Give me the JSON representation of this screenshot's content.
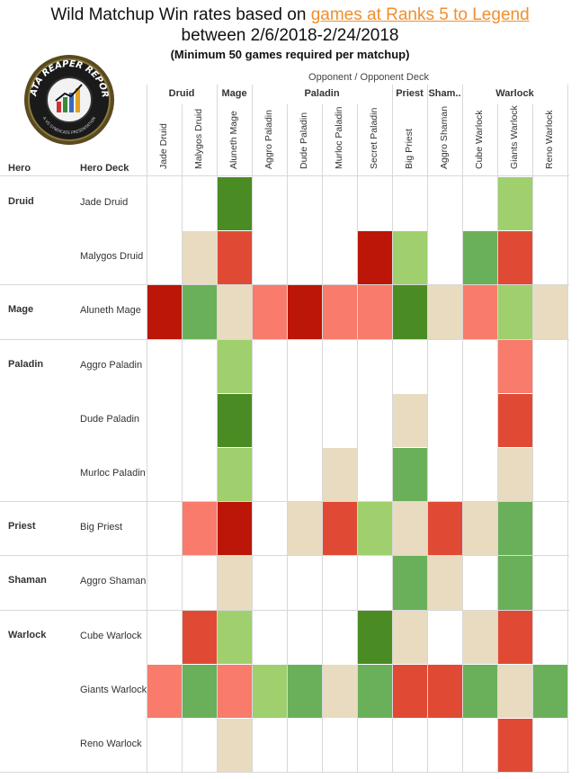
{
  "header": {
    "title_pre": "Wild Matchup Win rates based on ",
    "title_link": "games at Ranks 5 to Legend",
    "subtitle": "between 2/6/2018-2/24/2018",
    "note": "(Minimum 50 games required per matchup)"
  },
  "logo": {
    "text_top": "DATA REAPER REPORT",
    "text_bottom": "A VS SYNDICATE PRESENTATION"
  },
  "axis": {
    "opponent_caption": "Opponent  /  Opponent Deck",
    "hero_label": "Hero",
    "hero_deck_label": "Hero Deck"
  },
  "colors": {
    "strong_fav": "#4a8c23",
    "fav": "#6aaf5a",
    "slight_fav": "#9fd06d",
    "even": "#e8dbc0",
    "slight_unfav": "#f87b6b",
    "unfav": "#e04a35",
    "strong_unfav": "#bb1608"
  },
  "chart_data": {
    "type": "heatmap",
    "legend_scale": [
      "strong_unfav",
      "unfav",
      "slight_unfav",
      "even",
      "slight_fav",
      "fav",
      "strong_fav"
    ],
    "opponent_groups": [
      {
        "name": "Druid",
        "span": 2
      },
      {
        "name": "Mage",
        "span": 1
      },
      {
        "name": "Paladin",
        "span": 4
      },
      {
        "name": "Priest",
        "span": 1
      },
      {
        "name": "Sham..",
        "span": 1
      },
      {
        "name": "Warlock",
        "span": 3
      }
    ],
    "opponent_decks": [
      "Jade Druid",
      "Malygos Druid",
      "Aluneth Mage",
      "Aggro Paladin",
      "Dude Paladin",
      "Murloc Paladin",
      "Secret Paladin",
      "Big Priest",
      "Aggro Shaman",
      "Cube Warlock",
      "Giants Warlock",
      "Reno Warlock"
    ],
    "hero_groups": [
      {
        "name": "Druid",
        "decks": [
          "Jade Druid",
          "Malygos Druid"
        ]
      },
      {
        "name": "Mage",
        "decks": [
          "Aluneth Mage"
        ]
      },
      {
        "name": "Paladin",
        "decks": [
          "Aggro Paladin",
          "Dude Paladin",
          "Murloc Paladin"
        ]
      },
      {
        "name": "Priest",
        "decks": [
          "Big Priest"
        ]
      },
      {
        "name": "Shaman",
        "decks": [
          "Aggro Shaman"
        ]
      },
      {
        "name": "Warlock",
        "decks": [
          "Cube Warlock",
          "Giants Warlock",
          "Reno Warlock"
        ]
      }
    ],
    "matrix": [
      [
        null,
        null,
        "strong_fav",
        null,
        null,
        null,
        null,
        null,
        null,
        null,
        "slight_fav",
        null
      ],
      [
        null,
        "even",
        "unfav",
        null,
        null,
        null,
        "strong_unfav",
        "slight_fav",
        null,
        "fav",
        "unfav",
        null
      ],
      [
        "strong_unfav",
        "fav",
        "even",
        "slight_unfav",
        "strong_unfav",
        "slight_unfav",
        "slight_unfav",
        "strong_fav",
        "even",
        "slight_unfav",
        "slight_fav",
        "even"
      ],
      [
        null,
        null,
        "slight_fav",
        null,
        null,
        null,
        null,
        null,
        null,
        null,
        "slight_unfav",
        null
      ],
      [
        null,
        null,
        "strong_fav",
        null,
        null,
        null,
        null,
        "even",
        null,
        null,
        "unfav",
        null
      ],
      [
        null,
        null,
        "slight_fav",
        null,
        null,
        "even",
        null,
        "fav",
        null,
        null,
        "even",
        null
      ],
      [
        null,
        "slight_unfav",
        "strong_unfav",
        null,
        "even",
        "unfav",
        "slight_fav",
        "even",
        "unfav",
        "even",
        "fav",
        null
      ],
      [
        null,
        null,
        "even",
        null,
        null,
        null,
        null,
        "fav",
        "even",
        null,
        "fav",
        null
      ],
      [
        null,
        "unfav",
        "slight_fav",
        null,
        null,
        null,
        "strong_fav",
        "even",
        null,
        "even",
        "unfav",
        null
      ],
      [
        "slight_unfav",
        "fav",
        "slight_unfav",
        "slight_fav",
        "fav",
        "even",
        "fav",
        "unfav",
        "unfav",
        "fav",
        "even",
        "fav"
      ],
      [
        null,
        null,
        "even",
        null,
        null,
        null,
        null,
        null,
        null,
        null,
        "unfav",
        null
      ]
    ]
  }
}
